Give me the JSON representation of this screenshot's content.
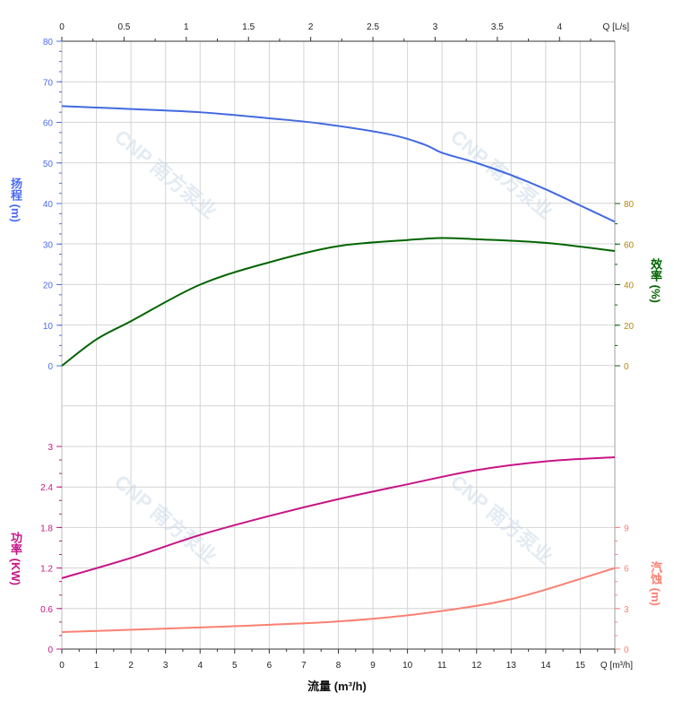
{
  "chart_data": {
    "type": "line",
    "xlabel": "流量 (m³/h)",
    "x_unit_label": "Q [m³/h]",
    "x_ticks": [
      0,
      1,
      2,
      3,
      4,
      5,
      6,
      7,
      8,
      9,
      10,
      11,
      12,
      13,
      14,
      15
    ],
    "xlim": [
      0,
      16
    ],
    "top_axis": {
      "unit_label": "Q [L/s]",
      "ticks": [
        0,
        0.5,
        1,
        1.5,
        2,
        2.5,
        3,
        3.5,
        4
      ]
    },
    "grid": true,
    "watermark": "CNP 南方泵业",
    "panels": [
      {
        "name": "upper",
        "left_axis": {
          "label": "扬程 (m)",
          "ylim": [
            -10,
            80
          ],
          "ticks": [
            0,
            10,
            20,
            30,
            40,
            50,
            60,
            70,
            80
          ],
          "color": "#4a6cf0"
        },
        "right_axis": {
          "label": "效率 (%)",
          "ylim": [
            0,
            80
          ],
          "ticks": [
            0,
            20,
            40,
            60,
            80
          ],
          "color": "#006400",
          "tick_color": "#b8860b"
        },
        "series": [
          {
            "name": "扬程",
            "axis": "left",
            "color": "#4169e1",
            "x": [
              0,
              2,
              4,
              6,
              7.5,
              9.5,
              10.5,
              11,
              12,
              13,
              14,
              15,
              16
            ],
            "y": [
              64,
              63.3,
              62.5,
              61,
              59.7,
              57,
              54.5,
              52.5,
              50,
              47,
              43.5,
              39.5,
              35.5
            ]
          },
          {
            "name": "效率",
            "axis": "right",
            "color": "#006400",
            "x": [
              0,
              1,
              2,
              4,
              6,
              8,
              10,
              11,
              12,
              14,
              16
            ],
            "y": [
              0,
              13,
              22,
              40,
              51,
              59,
              62,
              63,
              62.4,
              60.6,
              56.6
            ]
          }
        ]
      },
      {
        "name": "lower",
        "left_axis": {
          "label": "功率 (KW)",
          "ylim": [
            0,
            3
          ],
          "ticks": [
            0,
            0.6,
            1.2,
            1.8,
            2.4,
            3
          ],
          "color": "#c71585"
        },
        "right_axis": {
          "label": "汽蚀 (m)",
          "ylim": [
            0,
            9
          ],
          "ticks": [
            0,
            3,
            6,
            9
          ],
          "color": "#fa8072"
        },
        "series": [
          {
            "name": "功率",
            "axis": "left",
            "color": "#c71585",
            "x": [
              0,
              2,
              4,
              6,
              8,
              10,
              12,
              14,
              16
            ],
            "y": [
              1.05,
              1.35,
              1.69,
              1.97,
              2.22,
              2.44,
              2.65,
              2.78,
              2.84
            ]
          },
          {
            "name": "汽蚀",
            "axis": "right",
            "color": "#fa8072",
            "x": [
              0,
              4,
              6,
              8,
              10,
              12,
              13,
              14,
              15,
              16
            ],
            "y": [
              1.26,
              1.6,
              1.8,
              2.05,
              2.5,
              3.2,
              3.7,
              4.4,
              5.2,
              6.0
            ]
          }
        ]
      }
    ]
  }
}
